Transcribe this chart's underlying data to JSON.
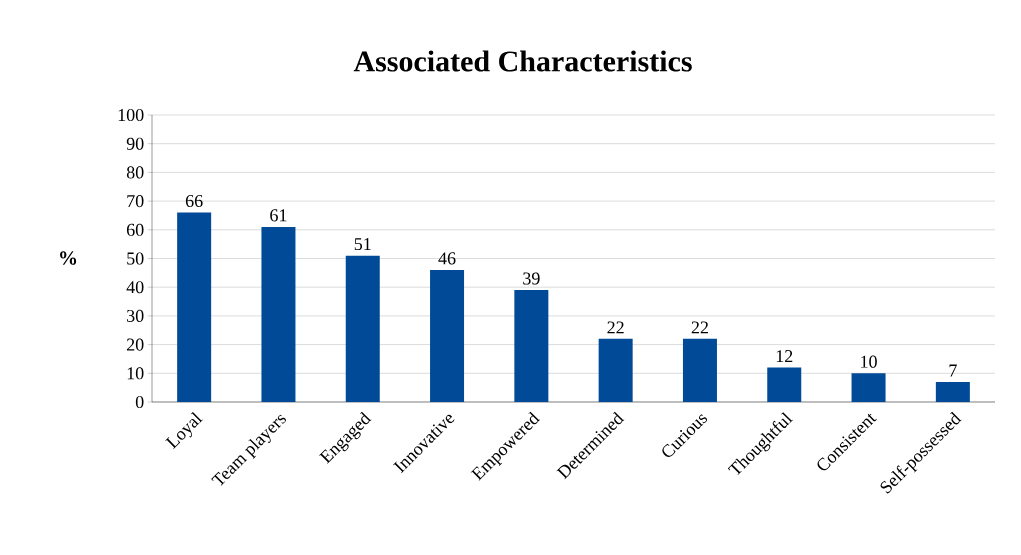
{
  "chart_data": {
    "type": "bar",
    "title": "Associated Characteristics",
    "ylabel": "%",
    "categories": [
      "Loyal",
      "Team players",
      "Engaged",
      "Innovative",
      "Empowered",
      "Determined",
      "Curious",
      "Thoughtful",
      "Consistent",
      "Self-possessed"
    ],
    "values": [
      66,
      61,
      51,
      46,
      39,
      22,
      22,
      12,
      10,
      7
    ],
    "color": "#004a98",
    "ylim": [
      0,
      100
    ],
    "yticks": [
      0,
      10,
      20,
      30,
      40,
      50,
      60,
      70,
      80,
      90,
      100
    ],
    "grid": "y",
    "data_labels": true
  }
}
